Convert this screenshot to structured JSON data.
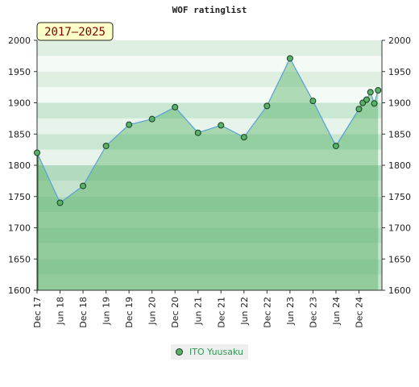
{
  "title": "WOF ratinglist",
  "period_label": "2017–2025",
  "chart_data": {
    "type": "line",
    "title": "WOF ratinglist",
    "ylim": [
      1600,
      2000
    ],
    "yticks": [
      1600,
      1650,
      1700,
      1750,
      1800,
      1850,
      1900,
      1950,
      2000
    ],
    "xlim": [
      "2017-12",
      "2025-06"
    ],
    "xtick_labels": [
      {
        "label": "Dec 17",
        "date": "2017-12"
      },
      {
        "label": "Jun 18",
        "date": "2018-06"
      },
      {
        "label": "Dec 18",
        "date": "2018-12"
      },
      {
        "label": "Jun 19",
        "date": "2019-06"
      },
      {
        "label": "Dec 19",
        "date": "2019-12"
      },
      {
        "label": "Jun 20",
        "date": "2020-06"
      },
      {
        "label": "Dec 20",
        "date": "2020-12"
      },
      {
        "label": "Jun 21",
        "date": "2021-06"
      },
      {
        "label": "Dec 21",
        "date": "2021-12"
      },
      {
        "label": "Jun 22",
        "date": "2022-06"
      },
      {
        "label": "Dec 22",
        "date": "2022-12"
      },
      {
        "label": "Jun 23",
        "date": "2023-06"
      },
      {
        "label": "Dec 23",
        "date": "2023-12"
      },
      {
        "label": "Jun 24",
        "date": "2024-06"
      },
      {
        "label": "Dec 24",
        "date": "2024-12"
      }
    ],
    "series": [
      {
        "name": "ITO Yuusaku",
        "color": "#58b06a",
        "points": [
          {
            "x": "2017-12",
            "y": 1820
          },
          {
            "x": "2018-06",
            "y": 1740
          },
          {
            "x": "2018-12",
            "y": 1767
          },
          {
            "x": "2019-06",
            "y": 1831
          },
          {
            "x": "2019-12",
            "y": 1865
          },
          {
            "x": "2020-06",
            "y": 1874
          },
          {
            "x": "2020-12",
            "y": 1893
          },
          {
            "x": "2021-06",
            "y": 1852
          },
          {
            "x": "2021-12",
            "y": 1864
          },
          {
            "x": "2022-06",
            "y": 1845
          },
          {
            "x": "2022-12",
            "y": 1895
          },
          {
            "x": "2023-06",
            "y": 1971
          },
          {
            "x": "2023-12",
            "y": 1903
          },
          {
            "x": "2024-06",
            "y": 1831
          },
          {
            "x": "2024-12",
            "y": 1890
          },
          {
            "x": "2025-01",
            "y": 1900
          },
          {
            "x": "2025-02",
            "y": 1905
          },
          {
            "x": "2025-03",
            "y": 1917
          },
          {
            "x": "2025-04",
            "y": 1899
          },
          {
            "x": "2025-05",
            "y": 1920
          }
        ]
      }
    ],
    "legend": "bottom-center",
    "grid": true,
    "fill": "area-under-line"
  }
}
